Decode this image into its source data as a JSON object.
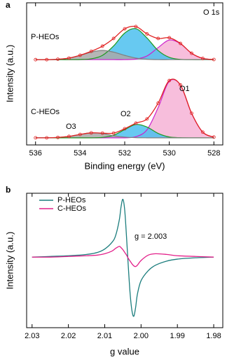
{
  "chart_data": [
    {
      "type": "xps",
      "panel_label": "a",
      "x_label": "Binding energy (eV)",
      "y_label": "Intensity (a.u.)",
      "annotation": "O 1s",
      "xlim": [
        536.4,
        527.6
      ],
      "xticks": [
        536,
        534,
        532,
        530,
        528
      ],
      "ylim": [
        0,
        100
      ],
      "x": [
        536,
        535.5,
        535,
        534.5,
        534,
        533.5,
        533,
        532.5,
        532,
        531.5,
        531,
        530.5,
        530,
        529.5,
        529,
        528.5,
        528
      ],
      "series": [
        {
          "name": "P-HEOs",
          "color": "#e02020",
          "values": [
            60,
            60,
            60.3,
            61.1,
            63.1,
            65.9,
            69.5,
            74.9,
            81.7,
            83.3,
            78.1,
            74.9,
            75.4,
            71.4,
            64.5,
            60.9,
            60.1
          ],
          "components": [
            {
              "color": "#cc22cc",
              "fill": "#f6b3d6",
              "values": [
                60,
                60,
                60,
                60,
                60,
                60,
                60,
                60,
                60,
                60.4,
                62.6,
                68.5,
                73.8,
                71.2,
                64.5,
                60.9,
                60.1
              ]
            },
            {
              "color": "#1f9a1f",
              "fill": "#4cc0ee",
              "values": [
                60,
                60,
                60,
                60,
                60.1,
                60.6,
                63,
                69.6,
                78.7,
                81.8,
                75.2,
                66.4,
                61.6,
                60.2,
                60,
                60,
                60
              ]
            },
            {
              "color": "#7f7f7f",
              "fill": "#a9a9a9",
              "values": [
                60,
                60,
                60.3,
                61.1,
                63,
                65.3,
                66.5,
                65.3,
                63,
                61.1,
                60.3,
                60,
                60,
                60,
                60,
                60,
                60
              ]
            }
          ]
        },
        {
          "name": "C-HEOs",
          "color": "#e02020",
          "values": [
            5,
            5,
            5.3,
            6,
            7.4,
            8.5,
            8.3,
            8.3,
            11.4,
            15.3,
            18.3,
            29.4,
            45.3,
            42.2,
            22.3,
            9,
            5.5
          ],
          "components": [
            {
              "name": "O1",
              "color": "#cc22cc",
              "fill": "#f6b3d6",
              "values": [
                5,
                5,
                5,
                5,
                5,
                5,
                5,
                5,
                5,
                5.8,
                10.7,
                26.3,
                44.7,
                42.1,
                22.3,
                9,
                5.5
              ]
            },
            {
              "name": "O2",
              "color": "#1f9a1f",
              "fill": "#4cc0ee",
              "values": [
                5,
                5,
                5,
                5,
                5,
                5,
                5.3,
                6.8,
                10.8,
                14.4,
                12.6,
                8.1,
                5.6,
                5.1,
                5,
                5,
                5
              ]
            },
            {
              "name": "O3",
              "color": "#7f7f7f",
              "fill": "#a9a9a9",
              "values": [
                5,
                5,
                5.3,
                6,
                7.4,
                8.5,
                8,
                6.5,
                5.5,
                5.1,
                5,
                5,
                5,
                5,
                5,
                5,
                5
              ]
            }
          ]
        }
      ]
    },
    {
      "type": "line",
      "panel_label": "b",
      "x_label": "g value",
      "y_label": "Intensity (a.u.)",
      "annotation": "g = 2.003",
      "xlim": [
        2.0315,
        1.9775
      ],
      "xticks": [
        2.03,
        2.02,
        2.01,
        {
          "value": 2,
          "label": "2.00"
        },
        1.99,
        1.98
      ],
      "ylim": [
        -105,
        95
      ],
      "legend": "upper left",
      "x": [
        2.03,
        2.025,
        2.02,
        2.015,
        2.012,
        2.01,
        2.008,
        2.007,
        2.006,
        2.0055,
        2.005,
        2.0045,
        2.004,
        2.0035,
        2.003,
        2.0025,
        2.002,
        2.0015,
        2.001,
        2.0,
        1.998,
        1.996,
        1.993,
        1.99,
        1.985,
        1.98
      ],
      "series": [
        {
          "name": "P-HEOs",
          "color": "#1b7d7d",
          "values": [
            0,
            1,
            2,
            4,
            7,
            12,
            22,
            32,
            55,
            75,
            86,
            70,
            30,
            -15,
            -55,
            -80,
            -88,
            -75,
            -55,
            -35,
            -20,
            -12,
            -6,
            -3,
            -1,
            0
          ]
        },
        {
          "name": "C-HEOs",
          "color": "#e3208a",
          "values": [
            0,
            0,
            1,
            2,
            3,
            5,
            9,
            13,
            16,
            14,
            11,
            7,
            3,
            -2,
            -6,
            -10,
            -13,
            -14,
            -12,
            -5,
            3,
            5,
            4,
            2,
            1,
            0
          ]
        }
      ]
    }
  ]
}
